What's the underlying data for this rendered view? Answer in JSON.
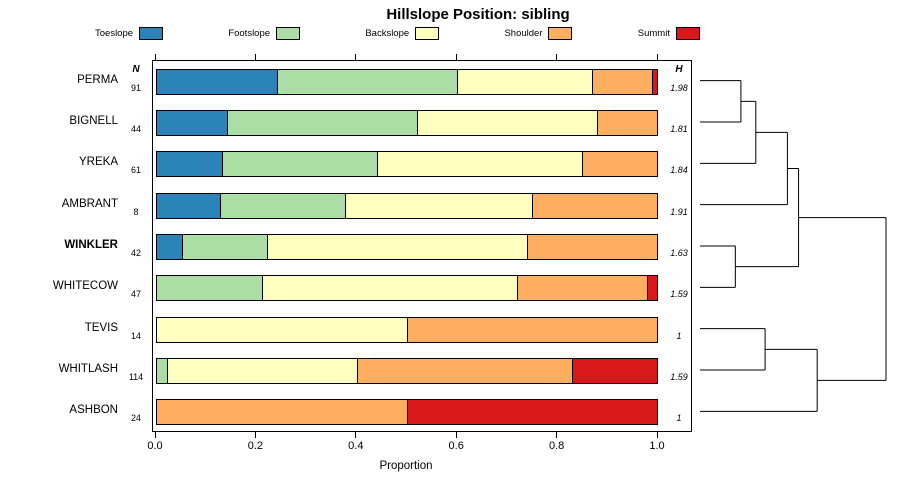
{
  "title": "Hillslope Position: sibling",
  "axis": {
    "xlabel": "Proportion",
    "ticks": [
      "0.0",
      "0.2",
      "0.4",
      "0.6",
      "0.8",
      "1.0"
    ]
  },
  "columns": {
    "n": "N",
    "h": "H"
  },
  "legend": [
    {
      "label": "Toeslope",
      "color": "#2B83BA"
    },
    {
      "label": "Footslope",
      "color": "#ABDDA4"
    },
    {
      "label": "Backslope",
      "color": "#FFFFBF"
    },
    {
      "label": "Shoulder",
      "color": "#FDAE61"
    },
    {
      "label": "Summit",
      "color": "#D7191C"
    }
  ],
  "chart_data": {
    "type": "bar",
    "variant": "stacked-horizontal",
    "title": "Hillslope Position: sibling",
    "xlabel": "Proportion",
    "xlim": [
      0,
      1
    ],
    "grid": false,
    "legend_position": "top",
    "categories": [
      "Toeslope",
      "Footslope",
      "Backslope",
      "Shoulder",
      "Summit"
    ],
    "colors": [
      "#2B83BA",
      "#ABDDA4",
      "#FFFFBF",
      "#FDAE61",
      "#D7191C"
    ],
    "rows": [
      {
        "name": "PERMA",
        "n": 91,
        "h": "1.98",
        "emphasis": false,
        "values": [
          0.24,
          0.36,
          0.27,
          0.12,
          0.01
        ]
      },
      {
        "name": "BIGNELL",
        "n": 44,
        "h": "1.81",
        "emphasis": false,
        "values": [
          0.14,
          0.38,
          0.36,
          0.12,
          0
        ]
      },
      {
        "name": "YREKA",
        "n": 61,
        "h": "1.84",
        "emphasis": false,
        "values": [
          0.13,
          0.31,
          0.41,
          0.15,
          0
        ]
      },
      {
        "name": "AMBRANT",
        "n": 8,
        "h": "1.91",
        "emphasis": false,
        "values": [
          0.125,
          0.25,
          0.375,
          0.25,
          0
        ]
      },
      {
        "name": "WINKLER",
        "n": 42,
        "h": "1.63",
        "emphasis": true,
        "values": [
          0.05,
          0.17,
          0.52,
          0.26,
          0
        ]
      },
      {
        "name": "WHITECOW",
        "n": 47,
        "h": "1.59",
        "emphasis": false,
        "values": [
          0,
          0.21,
          0.51,
          0.26,
          0.02
        ]
      },
      {
        "name": "TEVIS",
        "n": 14,
        "h": "1",
        "emphasis": false,
        "values": [
          0,
          0,
          0.5,
          0.5,
          0
        ]
      },
      {
        "name": "WHITLASH",
        "n": 114,
        "h": "1.59",
        "emphasis": false,
        "values": [
          0,
          0.02,
          0.38,
          0.43,
          0.17
        ]
      },
      {
        "name": "ASHBON",
        "n": 24,
        "h": "1",
        "emphasis": false,
        "values": [
          0,
          0,
          0,
          0.5,
          0.5
        ]
      }
    ],
    "dendrogram": {
      "merges": [
        {
          "a": "PERMA",
          "b": "BIGNELL",
          "height": 0.22
        },
        {
          "a": "m0",
          "b": "YREKA",
          "height": 0.3
        },
        {
          "a": "m1",
          "b": "AMBRANT",
          "height": 0.47
        },
        {
          "a": "WINKLER",
          "b": "WHITECOW",
          "height": 0.19
        },
        {
          "a": "m2",
          "b": "m3",
          "height": 0.53
        },
        {
          "a": "TEVIS",
          "b": "WHITLASH",
          "height": 0.35
        },
        {
          "a": "m5",
          "b": "ASHBON",
          "height": 0.63
        },
        {
          "a": "m4",
          "b": "m6",
          "height": 1.0
        }
      ]
    }
  }
}
